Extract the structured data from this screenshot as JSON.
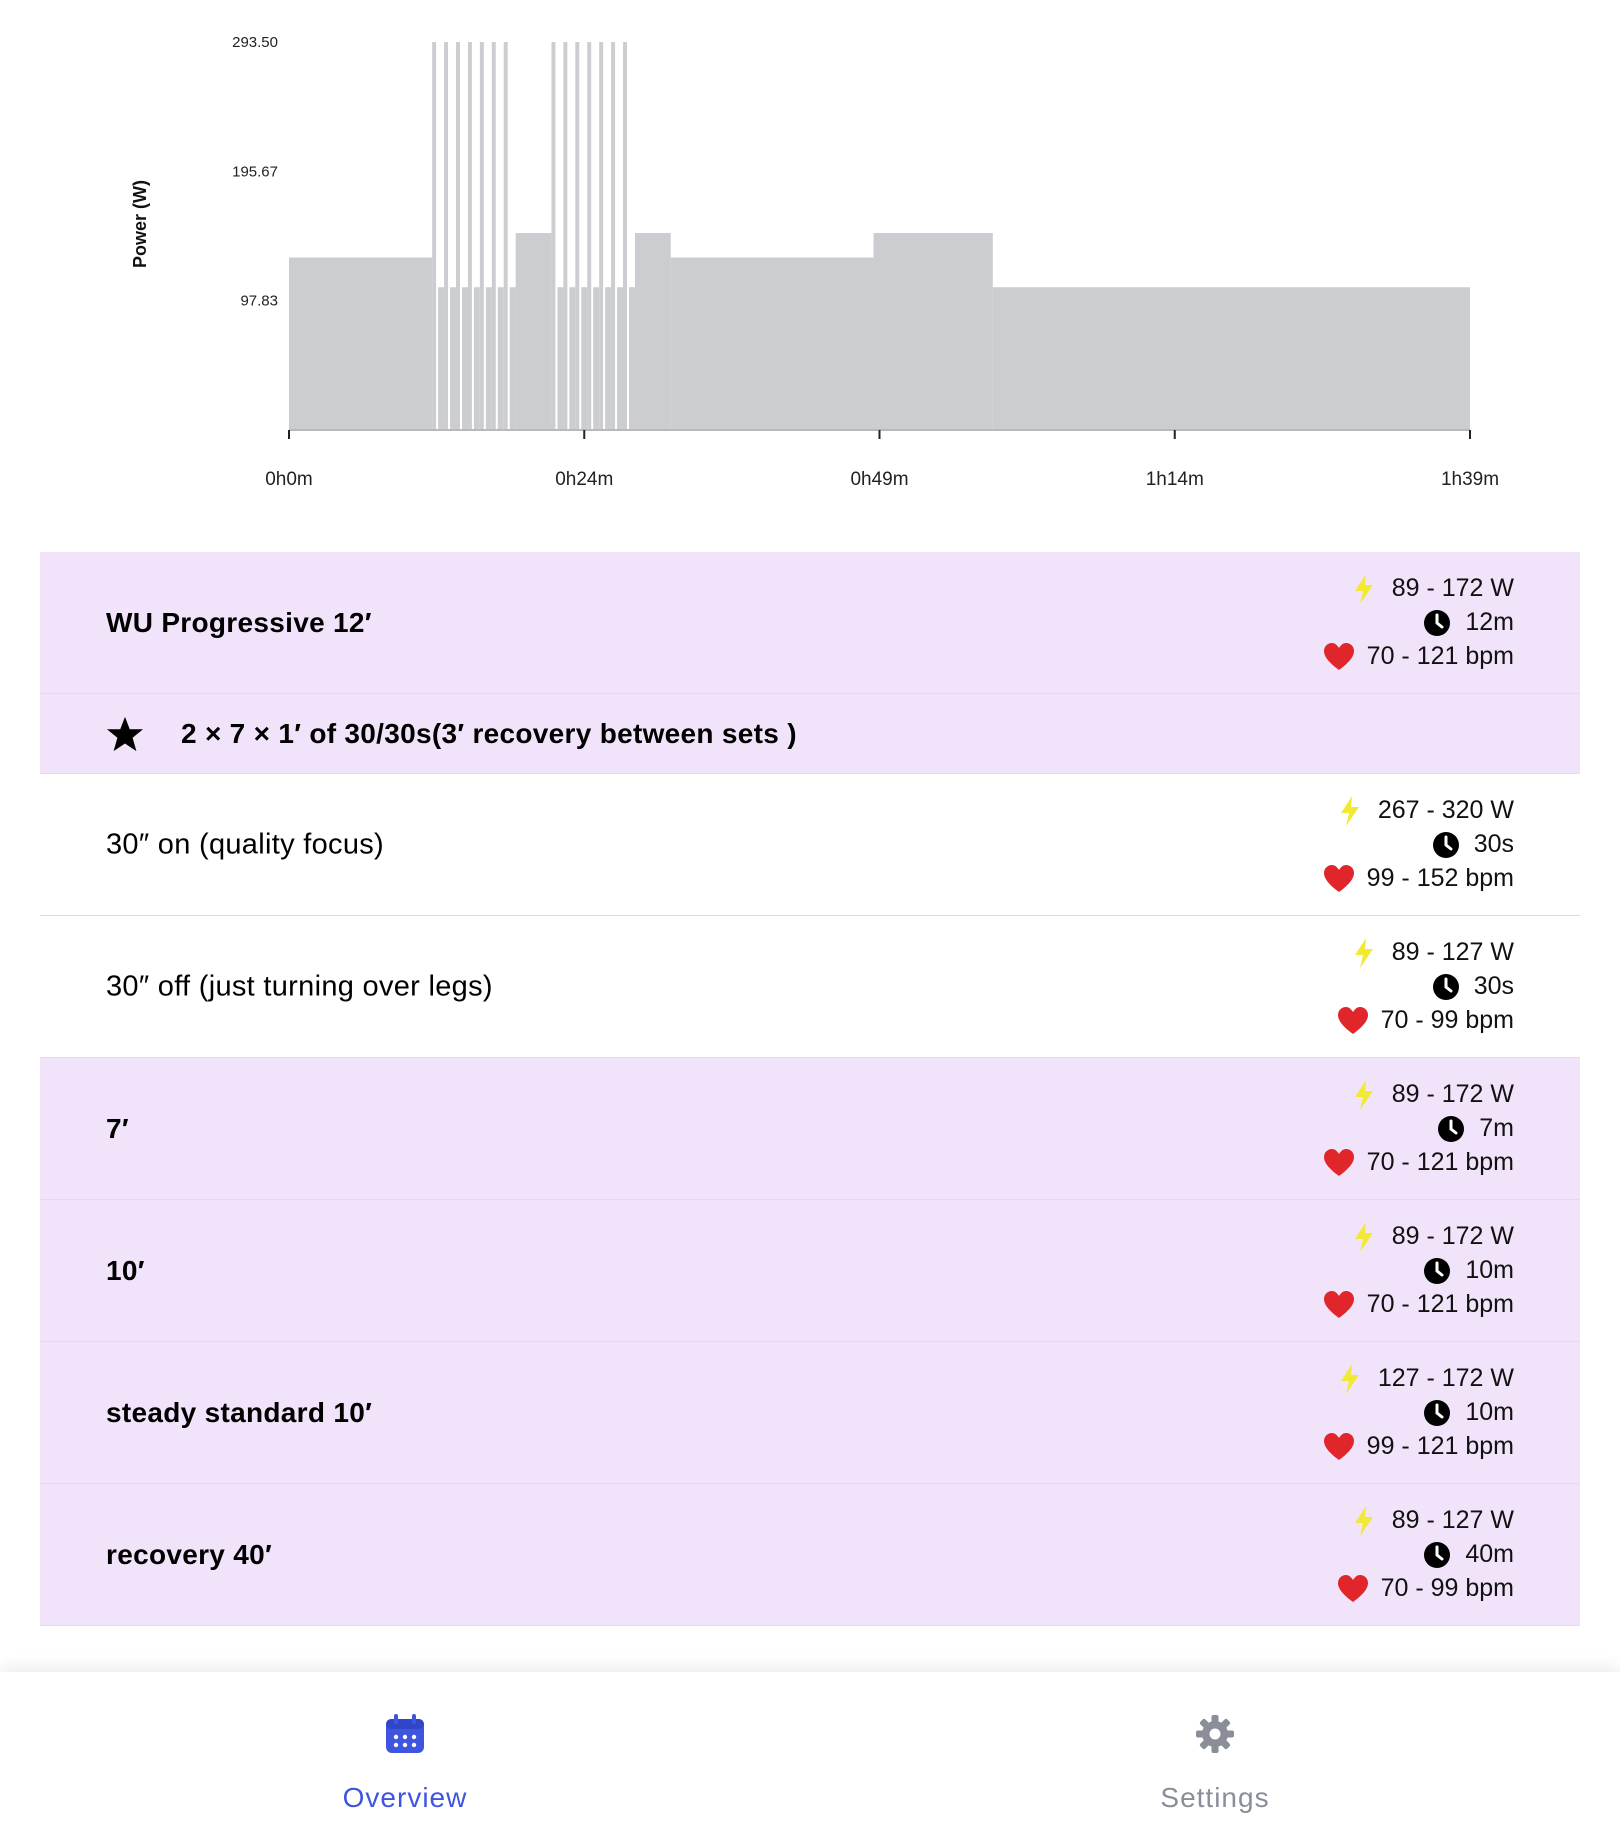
{
  "chart_data": {
    "type": "area",
    "ylabel": "Power (W)",
    "y_ticks": [
      "293.50",
      "195.67",
      "97.83"
    ],
    "x_ticks": [
      "0h0m",
      "0h24m",
      "0h49m",
      "1h14m",
      "1h39m"
    ],
    "ylim": [
      0,
      293.5
    ],
    "xlim_minutes": [
      0,
      99
    ],
    "segments": [
      {
        "start_min": 0,
        "end_min": 12,
        "power": 130.5
      },
      {
        "repeat": 7,
        "on_sec": 30,
        "off_sec": 30,
        "on_power": 293.5,
        "off_power": 108
      },
      {
        "duration_min": 3,
        "power": 149
      },
      {
        "repeat": 7,
        "on_sec": 30,
        "off_sec": 30,
        "on_power": 293.5,
        "off_power": 108
      },
      {
        "duration_min": 3,
        "power": 149
      },
      {
        "duration_min": 17,
        "power": 130.5
      },
      {
        "duration_min": 10,
        "power": 149
      },
      {
        "duration_min": 40,
        "power": 108
      }
    ],
    "fill_color": "#cccdd1"
  },
  "steps": [
    {
      "name": "WU Progressive 12′",
      "power": "89 - 172 W",
      "duration": "12m",
      "hr": "70 - 121 bpm",
      "style": "purple"
    },
    {
      "set_header": "2 × 7 × 1′ of 30/30s(3′ recovery between sets  )",
      "style": "purple"
    },
    {
      "name": "30″ on (quality focus)",
      "power": "267 - 320 W",
      "duration": "30s",
      "hr": "99 - 152 bpm",
      "style": "plain"
    },
    {
      "name": "30″ off (just turning over legs)",
      "power": "89 - 127 W",
      "duration": "30s",
      "hr": "70 - 99 bpm",
      "style": "plain"
    },
    {
      "name": "7′",
      "power": "89 - 172 W",
      "duration": "7m",
      "hr": "70 - 121 bpm",
      "style": "purple"
    },
    {
      "name": "10′",
      "power": "89 - 172 W",
      "duration": "10m",
      "hr": "70 - 121 bpm",
      "style": "purple"
    },
    {
      "name": "steady standard 10′",
      "power": "127 - 172 W",
      "duration": "10m",
      "hr": "99 - 121 bpm",
      "style": "purple"
    },
    {
      "name": "recovery 40′",
      "power": "89 - 127 W",
      "duration": "40m",
      "hr": "70 - 99 bpm",
      "style": "purple"
    }
  ],
  "icons": {
    "power": "lightning-icon",
    "duration": "clock-icon",
    "hr": "heart-icon",
    "set": "star-icon"
  },
  "colors": {
    "purple_row": "#f1e4fa",
    "lightning": "#f2e934",
    "heart": "#e0262b",
    "active_tab": "#3f55e0",
    "inactive_tab": "#8a8e99"
  },
  "tabs": [
    {
      "label": "Overview",
      "icon": "calendar-icon",
      "active": true
    },
    {
      "label": "Settings",
      "icon": "gear-icon",
      "active": false
    }
  ]
}
